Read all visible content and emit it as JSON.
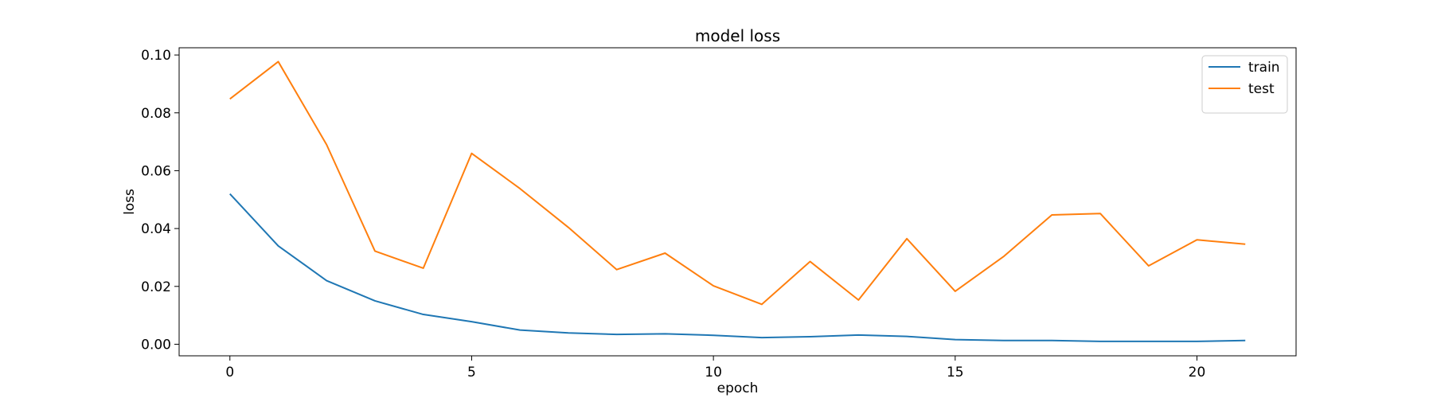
{
  "chart_data": {
    "type": "line",
    "title": "model loss",
    "xlabel": "epoch",
    "ylabel": "loss",
    "xlim": [
      -1.05,
      22.05
    ],
    "ylim": [
      -0.004,
      0.1025
    ],
    "xticks": [
      0,
      5,
      10,
      15,
      20
    ],
    "yticks": [
      0.0,
      0.02,
      0.04,
      0.06,
      0.08,
      0.1
    ],
    "ytick_labels": [
      "0.00",
      "0.02",
      "0.04",
      "0.06",
      "0.08",
      "0.10"
    ],
    "grid": false,
    "legend": "top-right",
    "x": [
      0,
      1,
      2,
      3,
      4,
      5,
      6,
      7,
      8,
      9,
      10,
      11,
      12,
      13,
      14,
      15,
      16,
      17,
      18,
      19,
      20,
      21
    ],
    "series": [
      {
        "name": "train",
        "color": "#1f77b4",
        "values": [
          0.052,
          0.034,
          0.022,
          0.015,
          0.0103,
          0.0078,
          0.0049,
          0.0039,
          0.0034,
          0.0036,
          0.0031,
          0.0023,
          0.0026,
          0.0032,
          0.0027,
          0.0016,
          0.0013,
          0.0013,
          0.001,
          0.001,
          0.001,
          0.0013
        ]
      },
      {
        "name": "test",
        "color": "#ff7f0e",
        "values": [
          0.0848,
          0.0977,
          0.069,
          0.0322,
          0.0263,
          0.066,
          0.0538,
          0.0404,
          0.0258,
          0.0315,
          0.0202,
          0.0138,
          0.0286,
          0.0153,
          0.0365,
          0.0183,
          0.0303,
          0.0447,
          0.0452,
          0.0271,
          0.0361,
          0.0346
        ]
      }
    ]
  }
}
